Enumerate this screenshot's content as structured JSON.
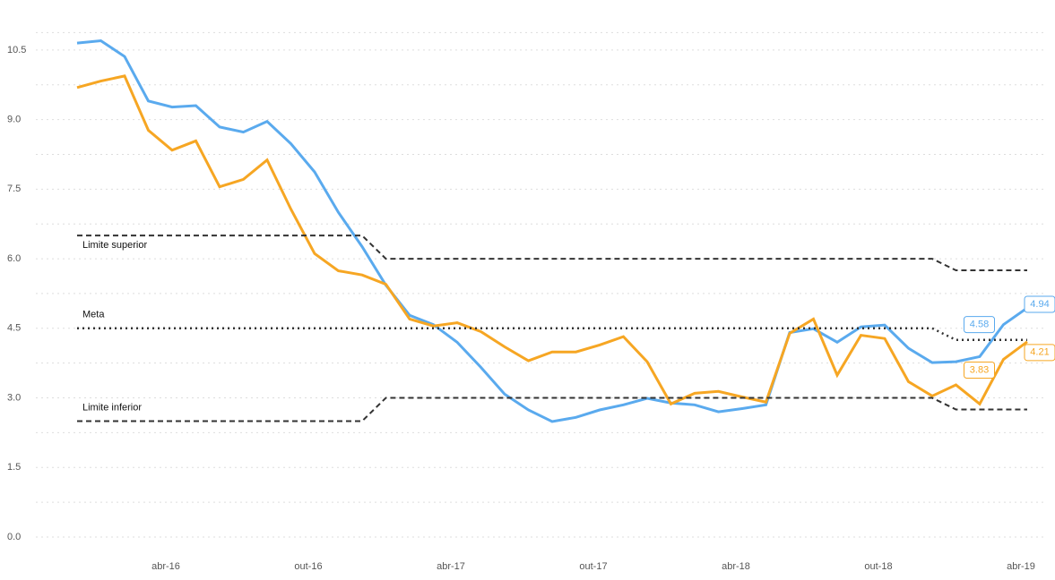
{
  "chart_data": {
    "type": "line",
    "categories": [
      null,
      null,
      null,
      null,
      "abr-16",
      null,
      null,
      null,
      null,
      null,
      "out-16",
      null,
      null,
      null,
      null,
      null,
      "abr-17",
      null,
      null,
      null,
      null,
      null,
      "out-17",
      null,
      null,
      null,
      null,
      null,
      "abr-18",
      null,
      null,
      null,
      null,
      null,
      "out-18",
      null,
      null,
      null,
      null,
      null,
      "abr-19"
    ],
    "series": [
      {
        "name": null,
        "color": "#5aaaee",
        "values": [
          10.65,
          10.7,
          10.36,
          9.4,
          9.27,
          9.3,
          8.84,
          8.73,
          8.96,
          8.48,
          7.87,
          7.0,
          6.26,
          5.43,
          4.78,
          4.58,
          4.2,
          3.66,
          3.08,
          2.74,
          2.49,
          2.58,
          2.74,
          2.85,
          2.99,
          2.89,
          2.85,
          2.7,
          2.77,
          2.85,
          4.41,
          4.49,
          4.2,
          4.53,
          4.57,
          4.07,
          3.76,
          3.78,
          3.89,
          4.58,
          4.94
        ]
      },
      {
        "name": null,
        "color": "#f6a623",
        "values": [
          9.69,
          9.83,
          9.94,
          8.77,
          8.34,
          8.54,
          7.55,
          7.71,
          8.13,
          7.07,
          6.11,
          5.74,
          5.65,
          5.45,
          4.7,
          4.55,
          4.62,
          4.43,
          4.1,
          3.8,
          3.99,
          3.99,
          4.14,
          4.32,
          3.78,
          2.87,
          3.1,
          3.14,
          3.02,
          2.91,
          4.39,
          4.7,
          3.49,
          4.35,
          4.28,
          3.35,
          3.04,
          3.28,
          2.87,
          3.83,
          4.21
        ]
      },
      {
        "name": "Limite superior",
        "color": "#333333",
        "style": "dashed",
        "values": [
          6.5,
          6.5,
          6.5,
          6.5,
          6.5,
          6.5,
          6.5,
          6.5,
          6.5,
          6.5,
          6.5,
          6.5,
          6.5,
          6.0,
          6.0,
          6.0,
          6.0,
          6.0,
          6.0,
          6.0,
          6.0,
          6.0,
          6.0,
          6.0,
          6.0,
          6.0,
          6.0,
          6.0,
          6.0,
          6.0,
          6.0,
          6.0,
          6.0,
          6.0,
          6.0,
          6.0,
          6.0,
          5.75,
          5.75,
          5.75,
          5.75
        ]
      },
      {
        "name": "Meta",
        "color": "#333333",
        "style": "dotted",
        "values": [
          4.5,
          4.5,
          4.5,
          4.5,
          4.5,
          4.5,
          4.5,
          4.5,
          4.5,
          4.5,
          4.5,
          4.5,
          4.5,
          4.5,
          4.5,
          4.5,
          4.5,
          4.5,
          4.5,
          4.5,
          4.5,
          4.5,
          4.5,
          4.5,
          4.5,
          4.5,
          4.5,
          4.5,
          4.5,
          4.5,
          4.5,
          4.5,
          4.5,
          4.5,
          4.5,
          4.5,
          4.5,
          4.25,
          4.25,
          4.25,
          4.25
        ]
      },
      {
        "name": "Limite inferior",
        "color": "#333333",
        "style": "dashed",
        "values": [
          2.5,
          2.5,
          2.5,
          2.5,
          2.5,
          2.5,
          2.5,
          2.5,
          2.5,
          2.5,
          2.5,
          2.5,
          2.5,
          3.0,
          3.0,
          3.0,
          3.0,
          3.0,
          3.0,
          3.0,
          3.0,
          3.0,
          3.0,
          3.0,
          3.0,
          3.0,
          3.0,
          3.0,
          3.0,
          3.0,
          3.0,
          3.0,
          3.0,
          3.0,
          3.0,
          3.0,
          3.0,
          2.75,
          2.75,
          2.75,
          2.75
        ]
      }
    ],
    "ylim": [
      0,
      11.25
    ],
    "yticks": [
      {
        "value": 0,
        "label": "0.0"
      },
      1.5,
      {
        "value": 3,
        "label": "3.0"
      },
      4.5,
      {
        "value": 6,
        "label": "6.0"
      },
      7.5,
      {
        "value": 9,
        "label": "9.0"
      },
      10.5
    ],
    "grid": true
  }
}
